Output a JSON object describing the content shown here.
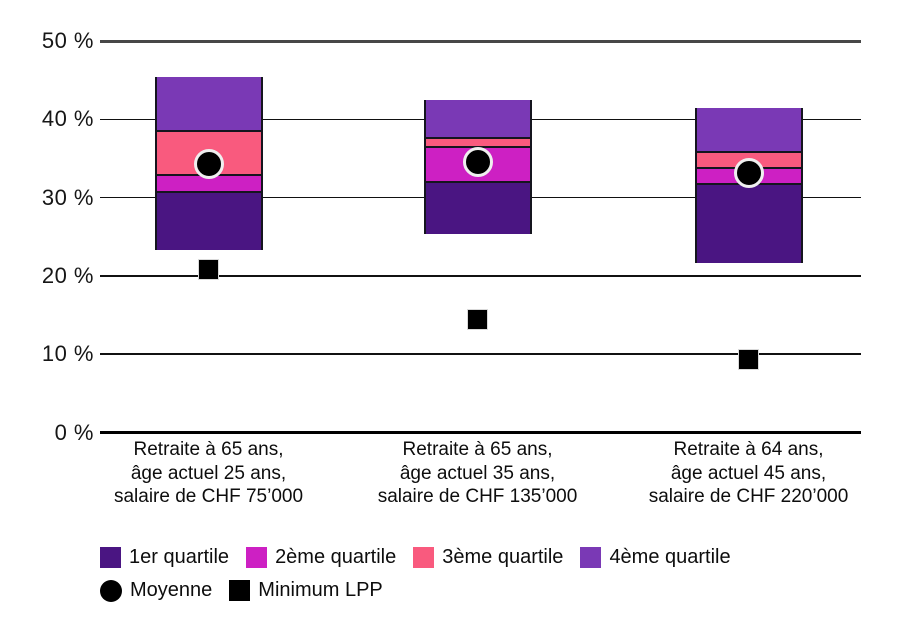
{
  "chart_data": {
    "type": "bar",
    "subtype": "stacked-quartile-ranges",
    "title": "",
    "xlabel": "",
    "ylabel": "",
    "ylim": [
      0,
      50
    ],
    "grid": true,
    "legend_position": "bottom-left",
    "yticks": [
      {
        "value": 0,
        "label": "0 %"
      },
      {
        "value": 10,
        "label": "10 %"
      },
      {
        "value": 20,
        "label": "20 %"
      },
      {
        "value": 30,
        "label": "30 %"
      },
      {
        "value": 40,
        "label": "40 %"
      },
      {
        "value": 50,
        "label": "50 %"
      }
    ],
    "categories": [
      [
        "Retraite à 65 ans,",
        "âge actuel 25 ans,",
        "salaire de CHF 75’000"
      ],
      [
        "Retraite à 65 ans,",
        "âge actuel 35 ans,",
        "salaire de CHF 135’000"
      ],
      [
        "Retraite à 64 ans,",
        "âge actuel 45 ans,",
        "salaire de CHF 220’000"
      ]
    ],
    "bars": [
      {
        "min": 23.3,
        "q1": 30.7,
        "median": 32.9,
        "q3": 38.5,
        "max": 45.4,
        "mean": 34.3,
        "minimum_lpp": 20.7
      },
      {
        "min": 25.3,
        "q1": 32.0,
        "median": 36.5,
        "q3": 37.6,
        "max": 42.5,
        "mean": 34.6,
        "minimum_lpp": 14.4
      },
      {
        "min": 21.7,
        "q1": 31.8,
        "median": 33.8,
        "q3": 35.8,
        "max": 41.4,
        "mean": 33.2,
        "minimum_lpp": 9.3
      }
    ],
    "colors": {
      "q1": "#4A1582",
      "q2": "#CD20C3",
      "q3": "#F95A7E",
      "q4": "#7A39B5",
      "marker": "#000000",
      "gridline": "#111111",
      "gridline_top": "#474747"
    },
    "legend": {
      "rows": [
        [
          {
            "label": "1er quartile",
            "shape": "square",
            "color": "#4A1582"
          },
          {
            "label": "2ème quartile",
            "shape": "square",
            "color": "#CD20C3"
          },
          {
            "label": "3ème quartile",
            "shape": "square",
            "color": "#F95A7E"
          },
          {
            "label": "4ème quartile",
            "shape": "square",
            "color": "#7A39B5"
          }
        ],
        [
          {
            "label": "Moyenne",
            "shape": "circle",
            "color": "#000000"
          },
          {
            "label": "Minimum LPP",
            "shape": "square",
            "color": "#000000"
          }
        ]
      ]
    }
  }
}
